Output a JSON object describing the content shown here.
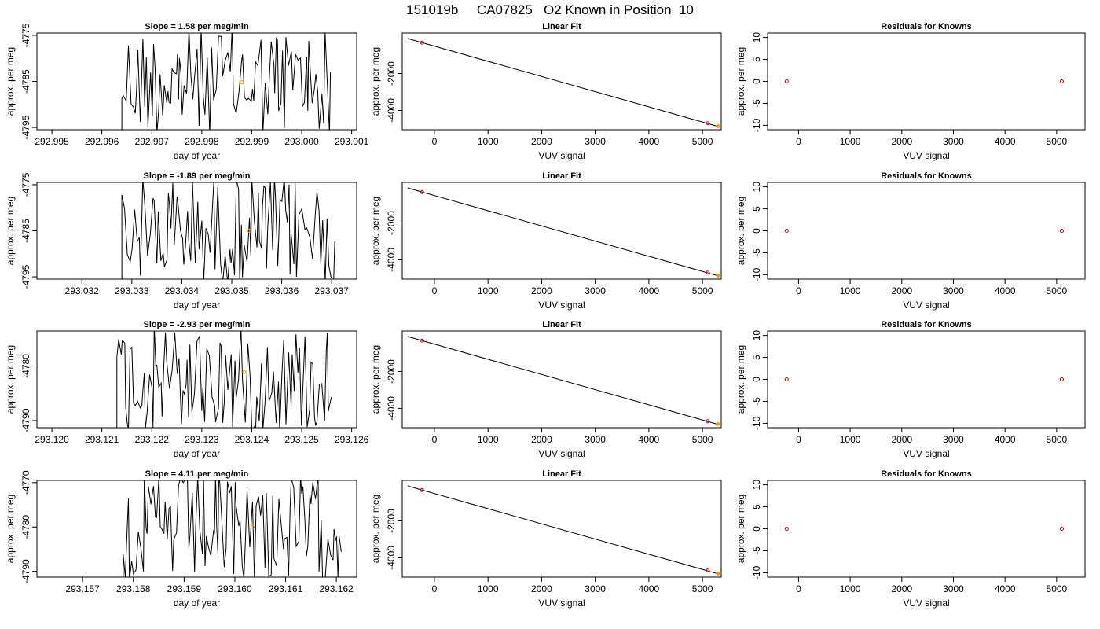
{
  "title": "151019b     CA07825   O2 Known in Position  10",
  "colors": {
    "line": "#000000",
    "known_point": "#cc0000",
    "cursor_point": "#ff9900",
    "frame": "#000000"
  },
  "chart_data": [
    {
      "type": "line",
      "row": 0,
      "column": "time",
      "title": "Slope =  1.58  per meg/min",
      "xlabel": "day of year",
      "ylabel": "approx. per meg",
      "xlim": [
        292.9947,
        293.0011
      ],
      "ylim": [
        -4795.5,
        -4774.5
      ],
      "xticks": [
        292.995,
        292.996,
        292.997,
        292.998,
        292.999,
        293.0,
        293.001
      ],
      "xticklabels": [
        "292.995",
        "292.996",
        "292.997",
        "292.998",
        "292.999",
        "293.000",
        "293.001"
      ],
      "yticks": [
        -4775,
        -4785,
        -4795
      ],
      "yticklabels": [
        "-4775",
        "-4785",
        "-4795"
      ],
      "signal_start": 292.9964,
      "signal_end": 293.0006,
      "highlight_point": {
        "x": 292.9988,
        "y": -4785.2
      }
    },
    {
      "type": "scatter",
      "row": 0,
      "column": "fit",
      "title": "Linear Fit",
      "xlabel": "VUV signal",
      "ylabel": "approx. per meg",
      "xlim": [
        -600,
        5350
      ],
      "ylim": [
        -5050,
        200
      ],
      "xticks": [
        0,
        1000,
        2000,
        3000,
        4000,
        5000
      ],
      "xticklabels": [
        "0",
        "1000",
        "2000",
        "3000",
        "4000",
        "5000"
      ],
      "yticks": [
        -2000,
        -4000
      ],
      "yticklabels": [
        "-2000",
        "-4000"
      ],
      "fit_line": [
        [
          -500,
          -100
        ],
        [
          5300,
          -4880
        ]
      ],
      "points": [
        {
          "x": -230,
          "y": -322
        },
        {
          "x": 5100,
          "y": -4697
        }
      ],
      "highlight_point": {
        "x": 5290,
        "y": -4855
      }
    },
    {
      "type": "scatter",
      "row": 0,
      "column": "resid",
      "title": "Residuals for Knowns",
      "xlabel": "VUV signal",
      "ylabel": "approx. per meg",
      "xlim": [
        -600,
        5550
      ],
      "ylim": [
        -11,
        11
      ],
      "xticks": [
        0,
        1000,
        2000,
        3000,
        4000,
        5000
      ],
      "xticklabels": [
        "0",
        "1000",
        "2000",
        "3000",
        "4000",
        "5000"
      ],
      "yticks": [
        10,
        5,
        0,
        -5,
        -10
      ],
      "yticklabels": [
        "10",
        "5",
        "0",
        "-5",
        "-10"
      ],
      "points": [
        {
          "x": -230,
          "y": 0
        },
        {
          "x": 5100,
          "y": 0
        }
      ]
    },
    {
      "type": "line",
      "row": 1,
      "column": "time",
      "title": "Slope =  -1.89  per meg/min",
      "xlabel": "day of year",
      "ylabel": "approx. per meg",
      "xlim": [
        293.0311,
        293.0375
      ],
      "ylim": [
        -4795.5,
        -4774.5
      ],
      "xticks": [
        293.032,
        293.033,
        293.034,
        293.035,
        293.036,
        293.037
      ],
      "xticklabels": [
        "293.032",
        "293.033",
        "293.034",
        "293.035",
        "293.036",
        "293.037"
      ],
      "yticks": [
        -4775,
        -4785,
        -4795
      ],
      "yticklabels": [
        "-4775",
        "-4785",
        "-4795"
      ],
      "signal_start": 293.0328,
      "signal_end": 293.0371,
      "highlight_point": {
        "x": 293.03535,
        "y": -4785
      }
    },
    {
      "type": "scatter",
      "row": 1,
      "column": "fit",
      "title": "Linear Fit",
      "xlabel": "VUV signal",
      "ylabel": "approx. per meg",
      "xlim": [
        -600,
        5350
      ],
      "ylim": [
        -5050,
        200
      ],
      "xticks": [
        0,
        1000,
        2000,
        3000,
        4000,
        5000
      ],
      "xticklabels": [
        "0",
        "1000",
        "2000",
        "3000",
        "4000",
        "5000"
      ],
      "yticks": [
        -2000,
        -4000
      ],
      "yticklabels": [
        "-2000",
        "-4000"
      ],
      "fit_line": [
        [
          -500,
          -100
        ],
        [
          5300,
          -4880
        ]
      ],
      "points": [
        {
          "x": -230,
          "y": -322
        },
        {
          "x": 5100,
          "y": -4697
        }
      ],
      "highlight_point": {
        "x": 5290,
        "y": -4855
      }
    },
    {
      "type": "scatter",
      "row": 1,
      "column": "resid",
      "title": "Residuals for Knowns",
      "xlabel": "VUV signal",
      "ylabel": "approx. per meg",
      "xlim": [
        -600,
        5550
      ],
      "ylim": [
        -11,
        11
      ],
      "xticks": [
        0,
        1000,
        2000,
        3000,
        4000,
        5000
      ],
      "xticklabels": [
        "0",
        "1000",
        "2000",
        "3000",
        "4000",
        "5000"
      ],
      "yticks": [
        10,
        5,
        0,
        -5,
        -10
      ],
      "yticklabels": [
        "10",
        "5",
        "0",
        "-5",
        "-10"
      ],
      "points": [
        {
          "x": -230,
          "y": 0
        },
        {
          "x": 5100,
          "y": 0
        }
      ]
    },
    {
      "type": "line",
      "row": 2,
      "column": "time",
      "title": "Slope =  -2.93  per meg/min",
      "xlabel": "day of year",
      "ylabel": "approx. per meg",
      "xlim": [
        293.1197,
        293.1261
      ],
      "ylim": [
        -4791.3,
        -4773.6
      ],
      "xticks": [
        293.12,
        293.121,
        293.122,
        293.123,
        293.124,
        293.125,
        293.126
      ],
      "xticklabels": [
        "293.120",
        "293.121",
        "293.122",
        "293.123",
        "293.124",
        "293.125",
        "293.126"
      ],
      "yticks": [
        -4780,
        -4790
      ],
      "yticklabels": [
        "-4780",
        "-4790"
      ],
      "signal_start": 293.1213,
      "signal_end": 293.1256,
      "highlight_point": {
        "x": 293.12385,
        "y": -4781.1
      }
    },
    {
      "type": "scatter",
      "row": 2,
      "column": "fit",
      "title": "Linear Fit",
      "xlabel": "VUV signal",
      "ylabel": "approx. per meg",
      "xlim": [
        -600,
        5350
      ],
      "ylim": [
        -5050,
        200
      ],
      "xticks": [
        0,
        1000,
        2000,
        3000,
        4000,
        5000
      ],
      "xticklabels": [
        "0",
        "1000",
        "2000",
        "3000",
        "4000",
        "5000"
      ],
      "yticks": [
        -2000,
        -4000
      ],
      "yticklabels": [
        "-2000",
        "-4000"
      ],
      "fit_line": [
        [
          -500,
          -100
        ],
        [
          5300,
          -4880
        ]
      ],
      "points": [
        {
          "x": -230,
          "y": -322
        },
        {
          "x": 5100,
          "y": -4697
        }
      ],
      "highlight_point": {
        "x": 5290,
        "y": -4855
      }
    },
    {
      "type": "scatter",
      "row": 2,
      "column": "resid",
      "title": "Residuals for Knowns",
      "xlabel": "VUV signal",
      "ylabel": "approx. per meg",
      "xlim": [
        -600,
        5550
      ],
      "ylim": [
        -11,
        11
      ],
      "xticks": [
        0,
        1000,
        2000,
        3000,
        4000,
        5000
      ],
      "xticklabels": [
        "0",
        "1000",
        "2000",
        "3000",
        "4000",
        "5000"
      ],
      "yticks": [
        10,
        5,
        0,
        -5,
        -10
      ],
      "yticklabels": [
        "10",
        "5",
        "0",
        "-5",
        "-10"
      ],
      "points": [
        {
          "x": -230,
          "y": 0
        },
        {
          "x": 5100,
          "y": 0
        }
      ]
    },
    {
      "type": "line",
      "row": 3,
      "column": "time",
      "title": "Slope =  4.11  per meg/min",
      "xlabel": "day of year",
      "ylabel": "approx. per meg",
      "xlim": [
        293.1561,
        293.1624
      ],
      "ylim": [
        -4791.3,
        -4769.5
      ],
      "xticks": [
        293.157,
        293.158,
        293.159,
        293.16,
        293.161,
        293.162
      ],
      "xticklabels": [
        "293.157",
        "293.158",
        "293.159",
        "293.160",
        "293.161",
        "293.162"
      ],
      "yticks": [
        -4770,
        -4780,
        -4790
      ],
      "yticklabels": [
        "-4770",
        "-4780",
        "-4790"
      ],
      "signal_start": 293.1578,
      "signal_end": 293.1621,
      "highlight_point": {
        "x": 293.16035,
        "y": -4780
      }
    },
    {
      "type": "scatter",
      "row": 3,
      "column": "fit",
      "title": "Linear Fit",
      "xlabel": "VUV signal",
      "ylabel": "approx. per meg",
      "xlim": [
        -600,
        5350
      ],
      "ylim": [
        -5050,
        200
      ],
      "xticks": [
        0,
        1000,
        2000,
        3000,
        4000,
        5000
      ],
      "xticklabels": [
        "0",
        "1000",
        "2000",
        "3000",
        "4000",
        "5000"
      ],
      "yticks": [
        -2000,
        -4000
      ],
      "yticklabels": [
        "-2000",
        "-4000"
      ],
      "fit_line": [
        [
          -500,
          -100
        ],
        [
          5300,
          -4880
        ]
      ],
      "points": [
        {
          "x": -230,
          "y": -322
        },
        {
          "x": 5100,
          "y": -4697
        }
      ],
      "highlight_point": {
        "x": 5290,
        "y": -4855
      }
    },
    {
      "type": "scatter",
      "row": 3,
      "column": "resid",
      "title": "Residuals for Knowns",
      "xlabel": "VUV signal",
      "ylabel": "approx. per meg",
      "xlim": [
        -600,
        5550
      ],
      "ylim": [
        -11,
        11
      ],
      "xticks": [
        0,
        1000,
        2000,
        3000,
        4000,
        5000
      ],
      "xticklabels": [
        "0",
        "1000",
        "2000",
        "3000",
        "4000",
        "5000"
      ],
      "yticks": [
        10,
        5,
        0,
        -5,
        -10
      ],
      "yticklabels": [
        "10",
        "5",
        "0",
        "-5",
        "-10"
      ],
      "points": [
        {
          "x": -230,
          "y": 0
        },
        {
          "x": 5100,
          "y": 0
        }
      ]
    }
  ]
}
